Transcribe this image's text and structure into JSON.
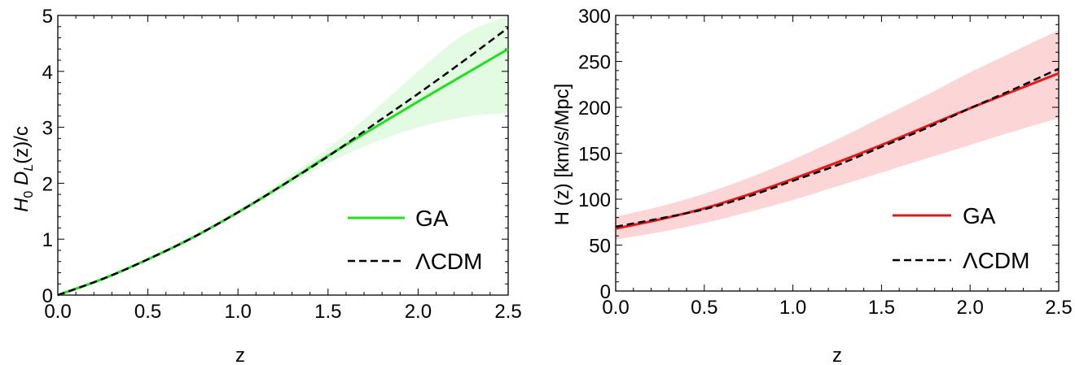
{
  "chart_data": [
    {
      "type": "line",
      "xlabel": "z",
      "ylabel": "H0 DL(z)/c",
      "ylabel_parts": {
        "main": "H",
        "sub1": "0",
        "mid": " D",
        "sub2": "L",
        "rest": "(z)/c"
      },
      "xlim": [
        0,
        2.5
      ],
      "ylim": [
        0,
        5
      ],
      "xticks": [
        "0.0",
        "0.5",
        "1.0",
        "1.5",
        "2.0",
        "2.5"
      ],
      "yticks": [
        "0",
        "1",
        "2",
        "3",
        "4",
        "5"
      ],
      "xtick_values": [
        0,
        0.5,
        1.0,
        1.5,
        2.0,
        2.5
      ],
      "ytick_values": [
        0,
        1,
        2,
        3,
        4,
        5
      ],
      "legend_position": "lower-right",
      "band_color": "#e3fae3",
      "series": [
        {
          "name": "GA",
          "style": "solid",
          "color": "#1fe01f",
          "x": [
            0,
            0.25,
            0.5,
            0.75,
            1.0,
            1.25,
            1.5,
            1.75,
            2.0,
            2.25,
            2.5
          ],
          "y": [
            0,
            0.29,
            0.64,
            1.03,
            1.48,
            1.97,
            2.49,
            2.98,
            3.46,
            3.93,
            4.4
          ],
          "band_lower": [
            0,
            0.29,
            0.63,
            1.01,
            1.44,
            1.9,
            2.36,
            2.72,
            3.0,
            3.18,
            3.26
          ],
          "band_upper": [
            0,
            0.29,
            0.65,
            1.05,
            1.52,
            2.05,
            2.62,
            3.28,
            4.0,
            4.65,
            5.3
          ]
        },
        {
          "name": "ΛCDM",
          "style": "dashed",
          "color": "#000000",
          "x": [
            0,
            0.25,
            0.5,
            0.75,
            1.0,
            1.25,
            1.5,
            1.75,
            2.0,
            2.25,
            2.5
          ],
          "y": [
            0,
            0.29,
            0.64,
            1.03,
            1.48,
            1.97,
            2.48,
            3.04,
            3.6,
            4.18,
            4.78
          ]
        }
      ]
    },
    {
      "type": "line",
      "xlabel": "z",
      "ylabel": "H (z) [km/s/Mpc]",
      "xlim": [
        0,
        2.5
      ],
      "ylim": [
        0,
        300
      ],
      "xticks": [
        "0.0",
        "0.5",
        "1.0",
        "1.5",
        "2.0",
        "2.5"
      ],
      "yticks": [
        "0",
        "50",
        "100",
        "150",
        "200",
        "250",
        "300"
      ],
      "xtick_values": [
        0,
        0.5,
        1.0,
        1.5,
        2.0,
        2.5
      ],
      "ytick_values": [
        0,
        50,
        100,
        150,
        200,
        250,
        300
      ],
      "legend_position": "lower-right",
      "band_color": "#fcd6d6",
      "series": [
        {
          "name": "GA",
          "style": "solid",
          "color": "#e81818",
          "x": [
            0,
            0.25,
            0.5,
            0.75,
            1.0,
            1.25,
            1.5,
            1.75,
            2.0,
            2.25,
            2.5
          ],
          "y": [
            68,
            78,
            90,
            105,
            122,
            140,
            159,
            179,
            199,
            218,
            237
          ],
          "band_lower": [
            56,
            64,
            74,
            86,
            99,
            114,
            129,
            144,
            159,
            174,
            188
          ],
          "band_upper": [
            81,
            92,
            106,
            123,
            143,
            165,
            189,
            213,
            238,
            261,
            284
          ]
        },
        {
          "name": "ΛCDM",
          "style": "dashed",
          "color": "#000000",
          "x": [
            0,
            0.25,
            0.5,
            0.75,
            1.0,
            1.25,
            1.5,
            1.75,
            2.0,
            2.25,
            2.5
          ],
          "y": [
            70,
            79,
            89,
            103,
            120,
            137,
            157,
            177,
            199,
            220,
            242
          ]
        }
      ]
    }
  ]
}
